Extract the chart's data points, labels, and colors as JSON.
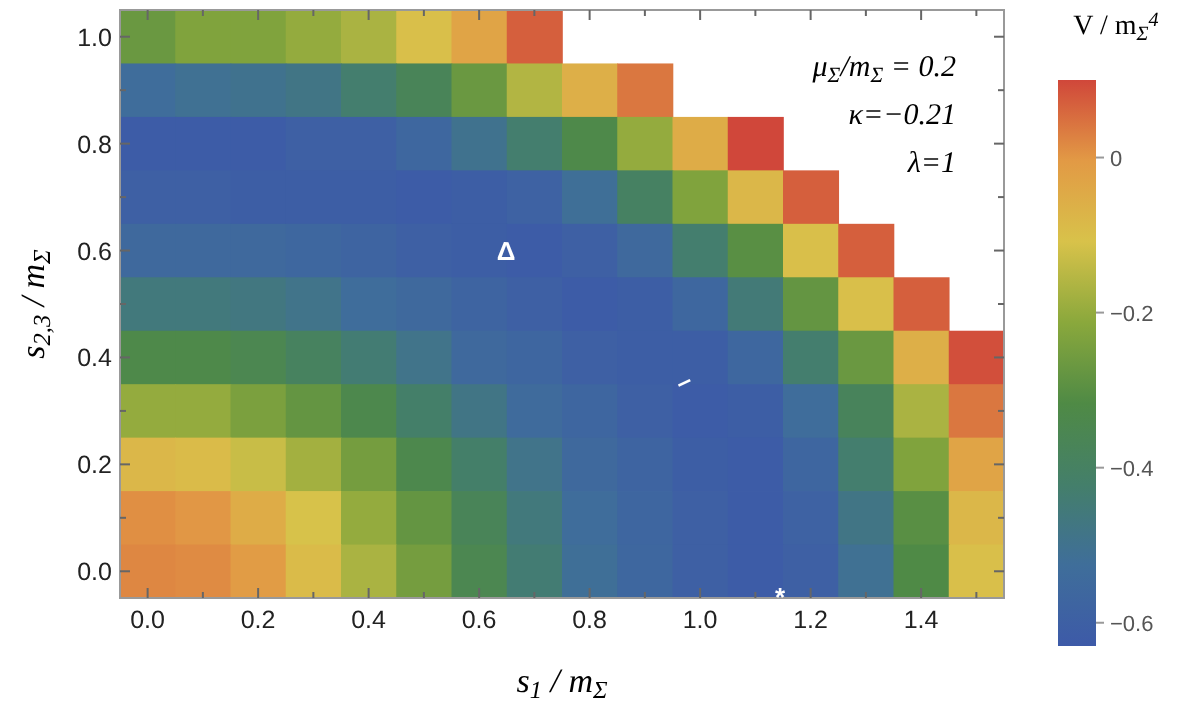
{
  "chart_data": {
    "type": "heatmap",
    "xlabel": "s$_{1}$ / m$_{Σ}$",
    "ylabel": "s$_{2,3}$ / m$_{Σ}$",
    "clabel": "V / m$_{Σ}$$^{4}$",
    "categories": [
      "0.0",
      null,
      "0.2",
      null,
      "0.4",
      null,
      "0.6",
      null,
      "0.8",
      null,
      "1.0",
      null,
      "1.2",
      null,
      "1.4",
      null
    ],
    "y_categories": [
      "1.0",
      null,
      "0.8",
      null,
      "0.6",
      null,
      "0.4",
      null,
      "0.2",
      null,
      "0.0"
    ],
    "clim": [
      -0.63,
      0.1
    ],
    "cticks": [
      {
        "value": 0,
        "label": "0"
      },
      {
        "value": -0.2,
        "label": "−0.2"
      },
      {
        "value": -0.4,
        "label": "−0.4"
      },
      {
        "value": -0.6,
        "label": "−0.6"
      }
    ],
    "colors": [
      "#3d5aa8",
      "#3f6e9a",
      "#447f6a",
      "#4f8a45",
      "#8aa83c",
      "#d8c24a",
      "#e29a45",
      "#d0473a"
    ],
    "cells": [
      [
        -0.27,
        -0.23,
        -0.23,
        -0.2,
        -0.17,
        -0.1,
        -0.03,
        0.07,
        null,
        null,
        null,
        null,
        null,
        null,
        null,
        null
      ],
      [
        -0.53,
        -0.51,
        -0.5,
        -0.48,
        -0.43,
        -0.37,
        -0.27,
        -0.16,
        -0.06,
        0.04,
        null,
        null,
        null,
        null,
        null,
        null
      ],
      [
        -0.62,
        -0.62,
        -0.62,
        -0.6,
        -0.6,
        -0.56,
        -0.5,
        -0.43,
        -0.33,
        -0.2,
        -0.05,
        0.1,
        null,
        null,
        null,
        null
      ],
      [
        -0.6,
        -0.6,
        -0.61,
        -0.61,
        -0.61,
        -0.62,
        -0.61,
        -0.59,
        -0.52,
        -0.4,
        -0.23,
        -0.08,
        0.07,
        null,
        null,
        null
      ],
      [
        -0.55,
        -0.55,
        -0.55,
        -0.56,
        -0.58,
        -0.6,
        -0.61,
        -0.62,
        -0.6,
        -0.55,
        -0.43,
        -0.3,
        -0.1,
        0.07,
        null,
        null
      ],
      [
        -0.46,
        -0.46,
        -0.47,
        -0.49,
        -0.53,
        -0.55,
        -0.58,
        -0.6,
        -0.62,
        -0.61,
        -0.56,
        -0.45,
        -0.28,
        -0.1,
        0.07,
        null
      ],
      [
        -0.33,
        -0.33,
        -0.35,
        -0.39,
        -0.44,
        -0.49,
        -0.55,
        -0.57,
        -0.6,
        -0.61,
        -0.61,
        -0.56,
        -0.43,
        -0.27,
        -0.06,
        0.09
      ],
      [
        -0.2,
        -0.2,
        -0.24,
        -0.28,
        -0.34,
        -0.42,
        -0.48,
        -0.54,
        -0.57,
        -0.6,
        -0.62,
        -0.61,
        -0.53,
        -0.38,
        -0.17,
        0.04
      ],
      [
        -0.08,
        -0.09,
        -0.13,
        -0.18,
        -0.25,
        -0.34,
        -0.42,
        -0.49,
        -0.55,
        -0.58,
        -0.61,
        -0.62,
        -0.57,
        -0.43,
        -0.23,
        -0.03
      ],
      [
        0.01,
        0.0,
        -0.05,
        -0.11,
        -0.2,
        -0.28,
        -0.37,
        -0.46,
        -0.53,
        -0.57,
        -0.6,
        -0.62,
        -0.59,
        -0.48,
        -0.3,
        -0.08
      ],
      [
        0.02,
        0.015,
        -0.01,
        -0.09,
        -0.17,
        -0.25,
        -0.35,
        -0.44,
        -0.52,
        -0.56,
        -0.6,
        -0.62,
        -0.6,
        -0.51,
        -0.32,
        -0.1
      ]
    ],
    "annotations": [
      "μ$_{Σ}$/m$_{Σ}$ = 0.2",
      "κ=−0.21",
      "λ=1",
      "Δ",
      "–",
      "*"
    ]
  }
}
